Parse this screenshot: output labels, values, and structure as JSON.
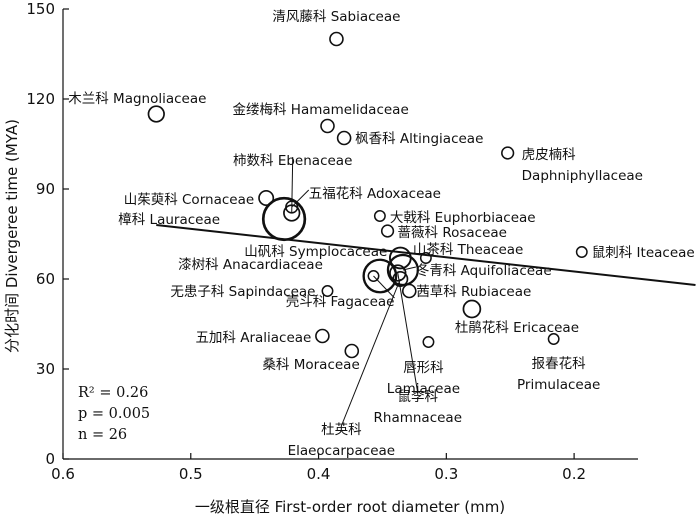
{
  "chart_data": {
    "type": "scatter",
    "xlabel": "一级根直径 First-order root diameter (mm)",
    "ylabel": "分化时间 Divergeree time (MYA)",
    "x_reversed": true,
    "xlim": [
      0.6,
      0.15
    ],
    "ylim": [
      0,
      150
    ],
    "x_ticks": [
      0.6,
      0.5,
      0.4,
      0.3,
      0.2
    ],
    "y_ticks": [
      0,
      30,
      60,
      90,
      120,
      150
    ],
    "x_tick_labels": [
      "0.6",
      "0.5",
      "0.4",
      "0.3",
      "0.2"
    ],
    "y_tick_labels": [
      "0",
      "30",
      "60",
      "90",
      "120",
      "150"
    ],
    "grid": false,
    "regression": {
      "x": [
        0.527,
        0.105
      ],
      "y": [
        78,
        58
      ]
    },
    "stats": {
      "r2": "R² = 0.26",
      "p": "p = 0.005",
      "n": "n = 26"
    },
    "points": [
      {
        "x": 0.386,
        "y": 140,
        "size": 1,
        "label": "清风藤科 Sabiaceae"
      },
      {
        "x": 0.527,
        "y": 115,
        "size": 1.2,
        "label": "木兰科 Magnoliaceae"
      },
      {
        "x": 0.393,
        "y": 111,
        "size": 1,
        "label": "金缕梅科 Hamamelidaceae"
      },
      {
        "x": 0.38,
        "y": 107,
        "size": 1,
        "label": "枫香科 Altingiaceae"
      },
      {
        "x": 0.252,
        "y": 102,
        "size": 0.9,
        "label": "虎皮楠科 Daphniphyllaceae"
      },
      {
        "x": 0.427,
        "y": 80,
        "size": 3.2,
        "label": "樟科 Lauraceae"
      },
      {
        "x": 0.441,
        "y": 87,
        "size": 1.1,
        "label": "山茱萸科 Cornaceae"
      },
      {
        "x": 0.421,
        "y": 82,
        "size": 1.2,
        "label": "柿数科 Ebenaceae"
      },
      {
        "x": 0.421,
        "y": 84,
        "size": 0.9,
        "label": "五福花科 Adoxaceae"
      },
      {
        "x": 0.352,
        "y": 81,
        "size": 0.8,
        "label": "大戟科 Euphorbiaceae"
      },
      {
        "x": 0.346,
        "y": 76,
        "size": 0.9,
        "label": "蔷薇科 Rosaceae"
      },
      {
        "x": 0.194,
        "y": 69,
        "size": 0.8,
        "label": "鼠刺科 Iteaceae"
      },
      {
        "x": 0.336,
        "y": 67,
        "size": 1.6,
        "label": "山矾科 Symplocaceae"
      },
      {
        "x": 0.316,
        "y": 67,
        "size": 0.8,
        "label": "山茶科 Theaceae"
      },
      {
        "x": 0.334,
        "y": 63,
        "size": 2.3,
        "label": "冬青科 Aquifoliaceae"
      },
      {
        "x": 0.352,
        "y": 61,
        "size": 2.5,
        "label": "漆树科 Anacardiaceae"
      },
      {
        "x": 0.393,
        "y": 56,
        "size": 0.8,
        "label": "无患子科 Sapindaceae"
      },
      {
        "x": 0.329,
        "y": 56,
        "size": 1,
        "label": "茜草科 Rubiaceae"
      },
      {
        "x": 0.357,
        "y": 61,
        "size": 0.8,
        "label": "壳斗科 Fagaceae"
      },
      {
        "x": 0.28,
        "y": 50,
        "size": 1.3,
        "label": "杜鹃花科 Ericaceae"
      },
      {
        "x": 0.397,
        "y": 41,
        "size": 1,
        "label": "五加科 Araliaceae"
      },
      {
        "x": 0.216,
        "y": 40,
        "size": 0.8,
        "label": "报春花科 Primulaceae"
      },
      {
        "x": 0.314,
        "y": 39,
        "size": 0.8,
        "label": "唇形科 Lamiaceae"
      },
      {
        "x": 0.374,
        "y": 36,
        "size": 1,
        "label": "桑科 Moraceae"
      },
      {
        "x": 0.336,
        "y": 60,
        "size": 1.1,
        "label": "杜英科 Elaeocarpaceae"
      },
      {
        "x": 0.338,
        "y": 62,
        "size": 1.2,
        "label": "鼠李科 Rhamnaceae"
      }
    ]
  }
}
